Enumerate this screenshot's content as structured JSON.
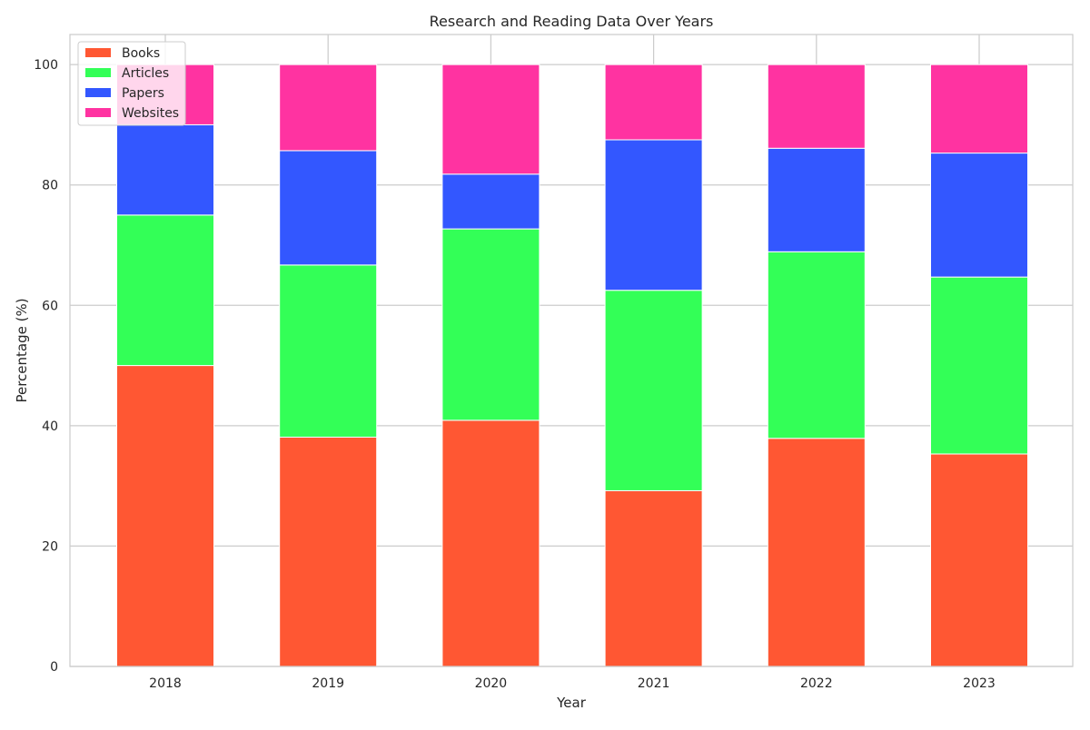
{
  "chart_data": {
    "type": "bar",
    "stacked": true,
    "title": "Research and Reading Data Over Years",
    "xlabel": "Year",
    "ylabel": "Percentage (%)",
    "categories": [
      "2018",
      "2019",
      "2020",
      "2021",
      "2022",
      "2023"
    ],
    "ylim": [
      0,
      105
    ],
    "yticks": [
      0,
      20,
      40,
      60,
      80,
      100
    ],
    "grid": true,
    "legend_position": "top-left",
    "series": [
      {
        "name": "Books",
        "color": "#ff5733",
        "values": [
          50.0,
          38.1,
          40.9,
          29.2,
          37.9,
          35.3
        ]
      },
      {
        "name": "Articles",
        "color": "#33ff57",
        "values": [
          25.0,
          28.6,
          31.8,
          33.3,
          31.0,
          29.4
        ]
      },
      {
        "name": "Papers",
        "color": "#3357ff",
        "values": [
          15.0,
          19.0,
          9.1,
          25.0,
          17.2,
          20.6
        ]
      },
      {
        "name": "Websites",
        "color": "#ff33a1",
        "values": [
          10.0,
          14.3,
          18.2,
          12.5,
          13.9,
          14.7
        ]
      }
    ]
  }
}
